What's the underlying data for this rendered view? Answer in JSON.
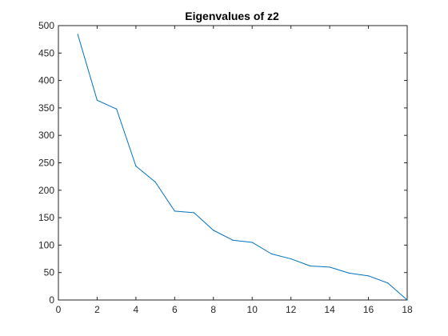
{
  "chart_data": {
    "type": "line",
    "title": "Eigenvalues of z2",
    "xlabel": "",
    "ylabel": "",
    "xlim": [
      0,
      18
    ],
    "ylim": [
      0,
      500
    ],
    "x_ticks": [
      0,
      2,
      4,
      6,
      8,
      10,
      12,
      14,
      16,
      18
    ],
    "y_ticks": [
      0,
      50,
      100,
      150,
      200,
      250,
      300,
      350,
      400,
      450,
      500
    ],
    "grid": false,
    "series": [
      {
        "color": "#0072BD",
        "x": [
          1,
          2,
          3,
          4,
          5,
          6,
          7,
          8,
          9,
          10,
          11,
          12,
          13,
          14,
          15,
          16,
          17,
          18
        ],
        "values": [
          484,
          364,
          348,
          244,
          215,
          162,
          159,
          127,
          109,
          105,
          84,
          75,
          62,
          60,
          49,
          44,
          31,
          0
        ]
      }
    ]
  }
}
